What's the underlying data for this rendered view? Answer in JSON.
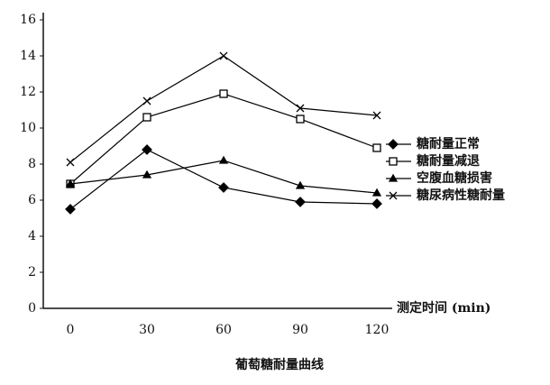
{
  "chart_data": {
    "type": "line",
    "title": "葡萄糖耐量曲线",
    "x_label": "测定时间 (min)",
    "categories": [
      "0",
      "30",
      "60",
      "90",
      "120"
    ],
    "series": [
      {
        "name": "糖耐量正常",
        "color": "#000000",
        "marker": "diamond",
        "values": [
          5.5,
          8.8,
          6.7,
          5.9,
          5.8
        ]
      },
      {
        "name": "糖耐量减退",
        "color": "#000000",
        "marker": "square",
        "values": [
          6.9,
          10.6,
          11.9,
          10.5,
          8.9
        ]
      },
      {
        "name": "空腹血糖损害",
        "color": "#000000",
        "marker": "triangle",
        "values": [
          6.9,
          7.4,
          8.2,
          6.8,
          6.4
        ]
      },
      {
        "name": "糖尿病性糖耐量",
        "color": "#000000",
        "marker": "cross",
        "values": [
          8.1,
          11.5,
          14.0,
          11.1,
          10.7
        ]
      }
    ],
    "ylim": [
      0,
      16
    ],
    "yticks": [
      0,
      2,
      4,
      6,
      8,
      10,
      12,
      14,
      16
    ],
    "grid": false,
    "legend": "right"
  }
}
